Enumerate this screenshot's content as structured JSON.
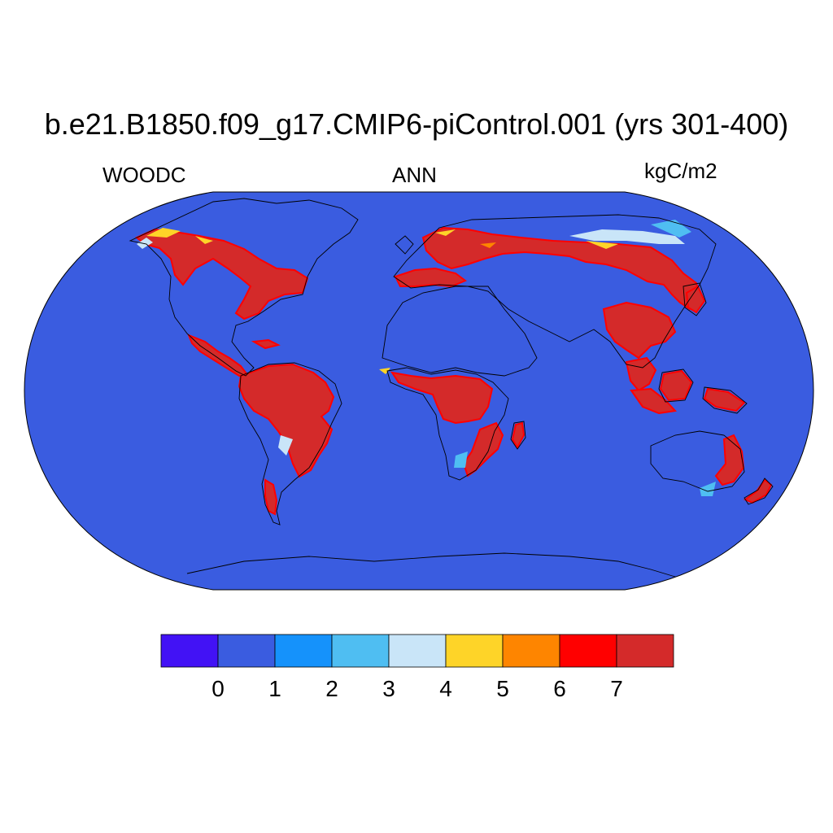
{
  "title": "b.e21.B1850.f09_g17.CMIP6-piControl.001 (yrs 301-400)",
  "left_label": "WOODC",
  "center_label": "ANN",
  "right_label": "kgC/m2",
  "colorbar": {
    "colors": [
      "#4212f5",
      "#3a5ce0",
      "#1592fb",
      "#4fbef2",
      "#c9e5f8",
      "#fed428",
      "#fe8500",
      "#ff0000",
      "#d42a2a"
    ],
    "ticks": [
      "0",
      "1",
      "2",
      "3",
      "4",
      "5",
      "6",
      "7"
    ]
  },
  "map_colors": {
    "ocean": "#3a5ce0",
    "high": "#d42a2a",
    "mid": "#ff0000",
    "orange": "#fe8500",
    "yellow": "#fed428",
    "pale": "#c9e5f8",
    "light": "#4fbef2",
    "coast": "#000000"
  }
}
